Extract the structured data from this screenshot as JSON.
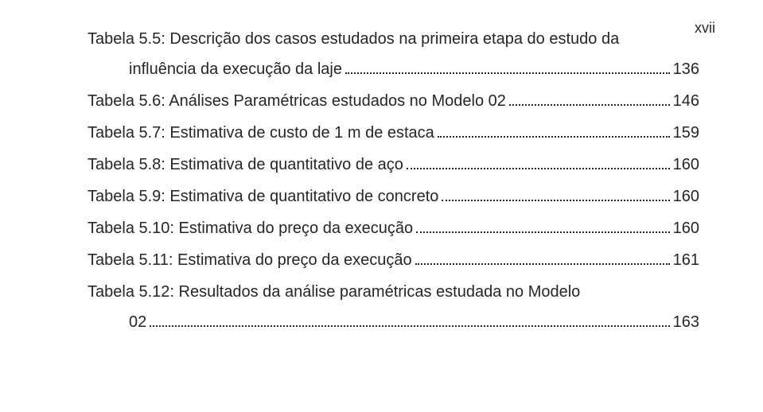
{
  "page_number": "xvii",
  "entries": [
    {
      "lead": "Tabela 5.5: Descrição dos casos estudados na primeira etapa do estudo da",
      "cont": "influência da execução da laje",
      "page": "136"
    },
    {
      "lead": "Tabela 5.6: Análises Paramétricas estudados no Modelo 02",
      "page": "146"
    },
    {
      "lead": "Tabela 5.7: Estimativa de custo de 1 m de estaca",
      "page": "159"
    },
    {
      "lead": "Tabela 5.8: Estimativa de quantitativo de aço",
      "page": "160"
    },
    {
      "lead": "Tabela 5.9: Estimativa de quantitativo de concreto",
      "page": "160"
    },
    {
      "lead": "Tabela 5.10: Estimativa do preço da execução",
      "page": "160"
    },
    {
      "lead": "Tabela 5.11: Estimativa do preço da execução",
      "page": "161"
    },
    {
      "lead": "Tabela 5.12: Resultados da análise paramétricas estudada no Modelo",
      "cont": "02",
      "page": "163"
    }
  ]
}
